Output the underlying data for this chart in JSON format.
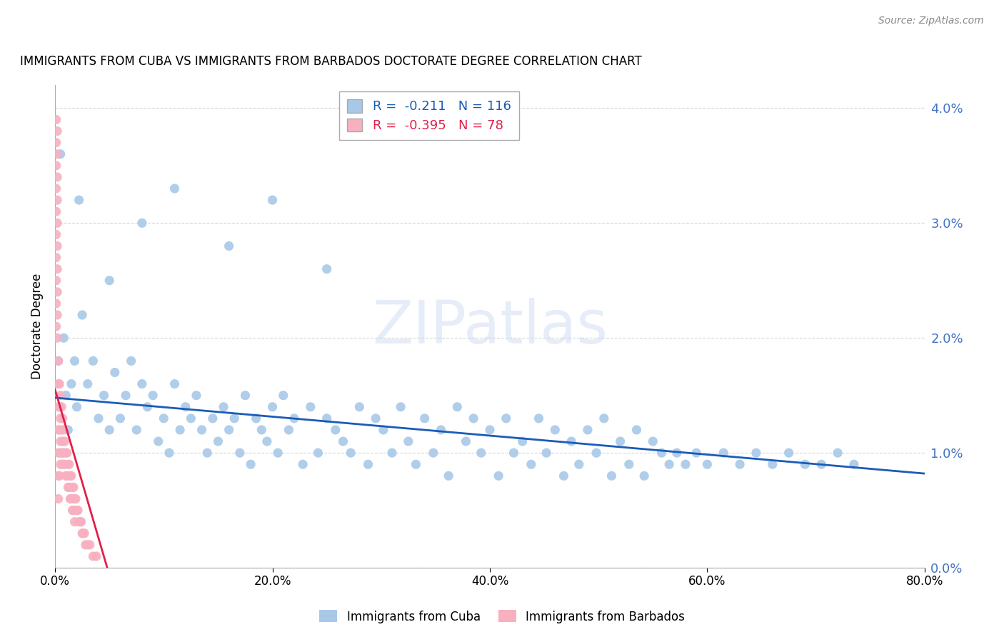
{
  "title": "IMMIGRANTS FROM CUBA VS IMMIGRANTS FROM BARBADOS DOCTORATE DEGREE CORRELATION CHART",
  "source": "Source: ZipAtlas.com",
  "ylabel": "Doctorate Degree",
  "xlim": [
    0.0,
    0.8
  ],
  "ylim": [
    0.0,
    0.042
  ],
  "cuba_R": -0.211,
  "cuba_N": 116,
  "barbados_R": -0.395,
  "barbados_N": 78,
  "cuba_color": "#a8c8e8",
  "barbados_color": "#f8b0c0",
  "cuba_line_color": "#1a5cb8",
  "barbados_line_color": "#e0204a",
  "watermark_text": "ZIPatlas",
  "background_color": "#ffffff",
  "grid_color": "#cccccc",
  "right_axis_color": "#4472c4",
  "title_fontsize": 12,
  "source_fontsize": 10,
  "cuba_trend_x": [
    0.0,
    0.8
  ],
  "cuba_trend_y": [
    0.0148,
    0.0082
  ],
  "barbados_trend_x": [
    0.0,
    0.048
  ],
  "barbados_trend_y": [
    0.0155,
    0.0
  ],
  "cuba_scatter_x": [
    0.005,
    0.022,
    0.003,
    0.008,
    0.01,
    0.012,
    0.004,
    0.015,
    0.007,
    0.018,
    0.025,
    0.02,
    0.03,
    0.035,
    0.04,
    0.045,
    0.05,
    0.055,
    0.06,
    0.065,
    0.07,
    0.075,
    0.08,
    0.085,
    0.09,
    0.095,
    0.1,
    0.105,
    0.11,
    0.115,
    0.12,
    0.125,
    0.13,
    0.135,
    0.14,
    0.145,
    0.15,
    0.155,
    0.16,
    0.165,
    0.17,
    0.175,
    0.18,
    0.185,
    0.19,
    0.195,
    0.2,
    0.205,
    0.21,
    0.215,
    0.22,
    0.228,
    0.235,
    0.242,
    0.25,
    0.258,
    0.265,
    0.272,
    0.28,
    0.288,
    0.295,
    0.302,
    0.31,
    0.318,
    0.325,
    0.332,
    0.34,
    0.348,
    0.355,
    0.362,
    0.37,
    0.378,
    0.385,
    0.392,
    0.4,
    0.408,
    0.415,
    0.422,
    0.43,
    0.438,
    0.445,
    0.452,
    0.46,
    0.468,
    0.475,
    0.482,
    0.49,
    0.498,
    0.505,
    0.512,
    0.52,
    0.528,
    0.535,
    0.542,
    0.55,
    0.558,
    0.565,
    0.572,
    0.58,
    0.59,
    0.6,
    0.615,
    0.63,
    0.645,
    0.66,
    0.675,
    0.69,
    0.705,
    0.72,
    0.735,
    0.05,
    0.08,
    0.11,
    0.16,
    0.2,
    0.25
  ],
  "cuba_scatter_y": [
    0.036,
    0.032,
    0.018,
    0.02,
    0.015,
    0.012,
    0.014,
    0.016,
    0.01,
    0.018,
    0.022,
    0.014,
    0.016,
    0.018,
    0.013,
    0.015,
    0.012,
    0.017,
    0.013,
    0.015,
    0.018,
    0.012,
    0.016,
    0.014,
    0.015,
    0.011,
    0.013,
    0.01,
    0.016,
    0.012,
    0.014,
    0.013,
    0.015,
    0.012,
    0.01,
    0.013,
    0.011,
    0.014,
    0.012,
    0.013,
    0.01,
    0.015,
    0.009,
    0.013,
    0.012,
    0.011,
    0.014,
    0.01,
    0.015,
    0.012,
    0.013,
    0.009,
    0.014,
    0.01,
    0.013,
    0.012,
    0.011,
    0.01,
    0.014,
    0.009,
    0.013,
    0.012,
    0.01,
    0.014,
    0.011,
    0.009,
    0.013,
    0.01,
    0.012,
    0.008,
    0.014,
    0.011,
    0.013,
    0.01,
    0.012,
    0.008,
    0.013,
    0.01,
    0.011,
    0.009,
    0.013,
    0.01,
    0.012,
    0.008,
    0.011,
    0.009,
    0.012,
    0.01,
    0.013,
    0.008,
    0.011,
    0.009,
    0.012,
    0.008,
    0.011,
    0.01,
    0.009,
    0.01,
    0.009,
    0.01,
    0.009,
    0.01,
    0.009,
    0.01,
    0.009,
    0.01,
    0.009,
    0.009,
    0.01,
    0.009,
    0.025,
    0.03,
    0.033,
    0.028,
    0.032,
    0.026
  ],
  "barbados_scatter_x": [
    0.001,
    0.001,
    0.001,
    0.001,
    0.001,
    0.001,
    0.001,
    0.001,
    0.001,
    0.001,
    0.002,
    0.002,
    0.002,
    0.002,
    0.002,
    0.002,
    0.002,
    0.002,
    0.002,
    0.002,
    0.003,
    0.003,
    0.003,
    0.003,
    0.003,
    0.003,
    0.003,
    0.004,
    0.004,
    0.004,
    0.004,
    0.004,
    0.005,
    0.005,
    0.005,
    0.005,
    0.006,
    0.006,
    0.006,
    0.007,
    0.007,
    0.007,
    0.008,
    0.008,
    0.009,
    0.009,
    0.01,
    0.01,
    0.011,
    0.011,
    0.012,
    0.012,
    0.013,
    0.013,
    0.014,
    0.014,
    0.015,
    0.015,
    0.016,
    0.016,
    0.017,
    0.017,
    0.018,
    0.018,
    0.019,
    0.02,
    0.021,
    0.022,
    0.023,
    0.024,
    0.025,
    0.026,
    0.027,
    0.028,
    0.03,
    0.032,
    0.035,
    0.038
  ],
  "barbados_scatter_y": [
    0.039,
    0.037,
    0.035,
    0.033,
    0.031,
    0.029,
    0.027,
    0.025,
    0.023,
    0.021,
    0.038,
    0.036,
    0.034,
    0.032,
    0.03,
    0.028,
    0.026,
    0.024,
    0.022,
    0.02,
    0.018,
    0.016,
    0.014,
    0.012,
    0.01,
    0.008,
    0.006,
    0.016,
    0.014,
    0.012,
    0.01,
    0.008,
    0.015,
    0.013,
    0.011,
    0.009,
    0.014,
    0.012,
    0.01,
    0.013,
    0.011,
    0.009,
    0.012,
    0.01,
    0.011,
    0.009,
    0.01,
    0.008,
    0.01,
    0.008,
    0.009,
    0.007,
    0.009,
    0.007,
    0.008,
    0.006,
    0.008,
    0.006,
    0.007,
    0.005,
    0.007,
    0.005,
    0.006,
    0.004,
    0.006,
    0.005,
    0.005,
    0.004,
    0.004,
    0.004,
    0.003,
    0.003,
    0.003,
    0.002,
    0.002,
    0.002,
    0.001,
    0.001
  ]
}
